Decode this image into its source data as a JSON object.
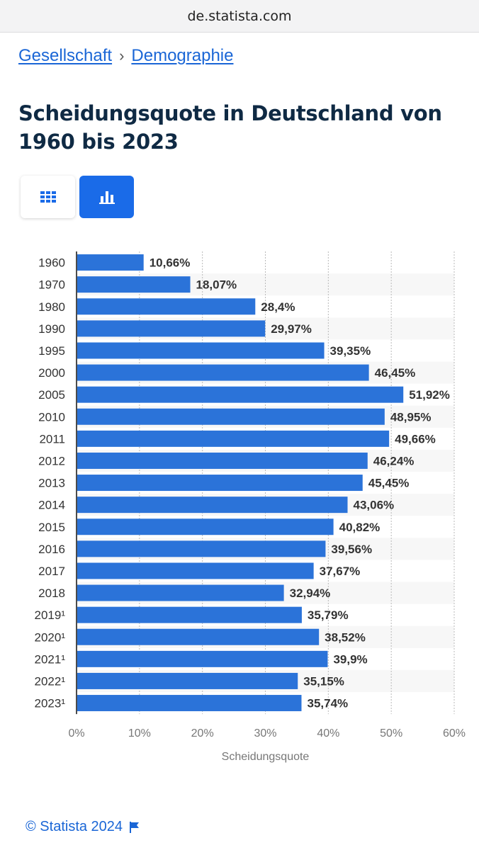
{
  "browser": {
    "url": "de.statista.com"
  },
  "breadcrumb": {
    "item1": "Gesellschaft",
    "separator": "›",
    "item2": "Demographie"
  },
  "page": {
    "title": "Scheidungsquote in Deutschland von 1960 bis 2023"
  },
  "view_toggle": {
    "table_icon": "grid-icon",
    "chart_icon": "bar-chart-icon",
    "active": "chart"
  },
  "colors": {
    "bar": "#2b73d9",
    "accent": "#1a6be8",
    "title": "#0f2a44",
    "link": "#1a66d6"
  },
  "chart_data": {
    "type": "bar",
    "orientation": "horizontal",
    "categories": [
      "1960",
      "1970",
      "1980",
      "1990",
      "1995",
      "2000",
      "2005",
      "2010",
      "2011",
      "2012",
      "2013",
      "2014",
      "2015",
      "2016",
      "2017",
      "2018",
      "2019¹",
      "2020¹",
      "2021¹",
      "2022¹",
      "2023¹"
    ],
    "values": [
      10.66,
      18.07,
      28.4,
      29.97,
      39.35,
      46.45,
      51.92,
      48.95,
      49.66,
      46.24,
      45.45,
      43.06,
      40.82,
      39.56,
      37.67,
      32.94,
      35.79,
      38.52,
      39.9,
      35.15,
      35.74
    ],
    "value_labels": [
      "10,66%",
      "18,07%",
      "28,4%",
      "29,97%",
      "39,35%",
      "46,45%",
      "51,92%",
      "48,95%",
      "49,66%",
      "46,24%",
      "45,45%",
      "43,06%",
      "40,82%",
      "39,56%",
      "37,67%",
      "32,94%",
      "35,79%",
      "38,52%",
      "39,9%",
      "35,15%",
      "35,74%"
    ],
    "xlim": [
      0,
      60
    ],
    "ticks": [
      0,
      10,
      20,
      30,
      40,
      50,
      60
    ],
    "tick_labels": [
      "0%",
      "10%",
      "20%",
      "30%",
      "40%",
      "50%",
      "60%"
    ],
    "xlabel": "Scheidungsquote",
    "grid": true
  },
  "footer": {
    "copyright": "© Statista 2024",
    "flag_icon": "flag-icon"
  }
}
